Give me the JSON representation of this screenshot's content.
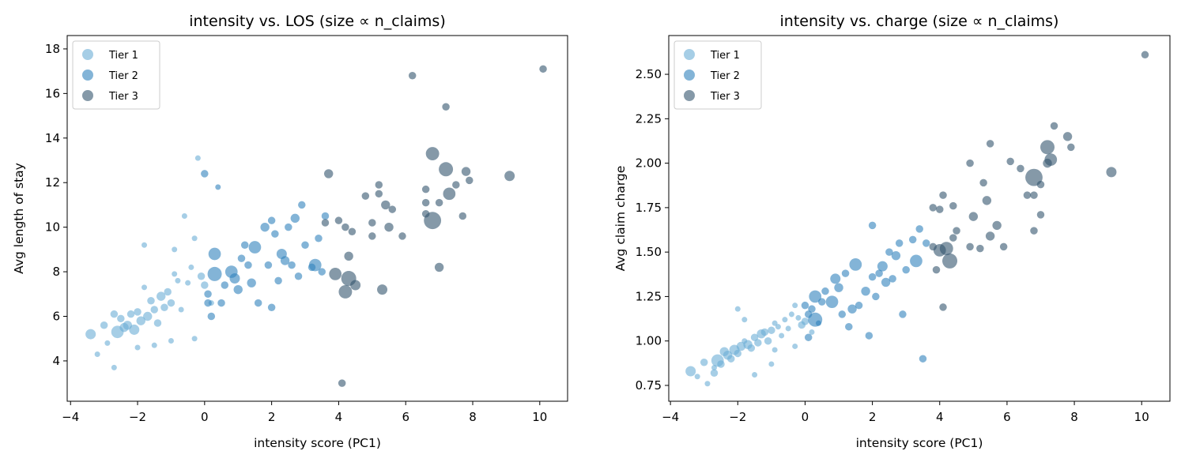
{
  "chart_data": [
    {
      "type": "scatter",
      "title": "intensity vs. LOS (size ∝ n_claims)",
      "xlabel": "intensity score (PC1)",
      "ylabel": "Avg length of stay",
      "xlim": [
        -4.1,
        10.83
      ],
      "ylim": [
        2.19,
        18.6
      ],
      "xticks": [
        {
          "value": -4,
          "label": "−4"
        },
        {
          "value": -2,
          "label": "−2"
        },
        0,
        2,
        4,
        6,
        8,
        10
      ],
      "yticks": [
        4,
        6,
        8,
        10,
        12,
        14,
        16,
        18
      ],
      "legend": "upper left",
      "series": [
        {
          "name": "Tier 1",
          "color": "#6baed6",
          "x": [
            -3.4,
            -3.2,
            -3.0,
            -2.9,
            -2.7,
            -2.6,
            -2.5,
            -2.3,
            -2.2,
            -2.1,
            -2.0,
            -1.9,
            -1.8,
            -1.7,
            -1.6,
            -1.5,
            -1.4,
            -1.3,
            -1.2,
            -1.1,
            -1.0,
            -0.9,
            -0.8,
            -0.7,
            -0.6,
            -0.5,
            -0.4,
            -0.3,
            -0.2,
            -0.1,
            0.0,
            0.2,
            -1.8,
            -2.4,
            -1.0,
            -0.3,
            -2.7,
            -1.5,
            -0.9,
            -2.0
          ],
          "values": [
            5.2,
            4.3,
            5.6,
            4.8,
            3.7,
            5.3,
            5.9,
            5.6,
            6.1,
            5.4,
            6.2,
            5.8,
            7.3,
            6.0,
            6.7,
            6.3,
            5.7,
            6.9,
            6.4,
            7.1,
            6.6,
            9.0,
            7.6,
            6.3,
            10.5,
            7.5,
            8.2,
            5.0,
            13.1,
            7.8,
            7.4,
            6.6,
            9.2,
            5.5,
            4.9,
            9.5,
            6.1,
            4.7,
            7.9,
            4.6
          ],
          "sizes": [
            40,
            10,
            20,
            10,
            10,
            60,
            20,
            30,
            20,
            40,
            20,
            30,
            10,
            30,
            20,
            20,
            20,
            30,
            20,
            20,
            20,
            10,
            10,
            10,
            10,
            10,
            10,
            10,
            10,
            20,
            20,
            10,
            10,
            30,
            10,
            10,
            20,
            10,
            10,
            10
          ]
        },
        {
          "name": "Tier 2",
          "color": "#3182bd",
          "x": [
            0.0,
            0.1,
            0.2,
            0.3,
            0.4,
            0.5,
            0.6,
            0.8,
            0.9,
            1.0,
            1.1,
            1.2,
            1.4,
            1.5,
            1.6,
            1.8,
            1.9,
            2.0,
            2.1,
            2.2,
            2.3,
            2.4,
            2.5,
            2.6,
            2.7,
            2.8,
            3.0,
            3.2,
            3.3,
            3.4,
            3.5,
            3.6,
            0.3,
            1.3,
            2.0,
            0.1,
            2.9
          ],
          "values": [
            12.4,
            7.0,
            6.0,
            8.8,
            11.8,
            6.6,
            7.4,
            8.0,
            7.7,
            7.2,
            8.6,
            9.2,
            7.5,
            9.1,
            6.6,
            10.0,
            8.3,
            10.3,
            9.7,
            7.6,
            8.8,
            8.5,
            10.0,
            8.3,
            10.4,
            7.8,
            9.2,
            8.2,
            8.3,
            9.5,
            8.0,
            10.5,
            7.9,
            8.3,
            6.4,
            6.6,
            11.0
          ],
          "sizes": [
            20,
            20,
            20,
            60,
            10,
            20,
            20,
            60,
            40,
            30,
            20,
            20,
            30,
            60,
            20,
            30,
            20,
            20,
            20,
            20,
            40,
            30,
            20,
            20,
            30,
            20,
            20,
            20,
            60,
            20,
            20,
            20,
            80,
            20,
            20,
            20,
            20
          ]
        },
        {
          "name": "Tier 3",
          "color": "#34556e",
          "x": [
            10.1,
            9.1,
            7.9,
            7.8,
            7.2,
            7.3,
            7.0,
            7.0,
            7.5,
            7.7,
            6.8,
            6.8,
            6.6,
            6.6,
            6.6,
            6.2,
            7.2,
            5.9,
            5.6,
            5.5,
            5.4,
            5.3,
            5.2,
            5.2,
            5.0,
            4.8,
            4.5,
            4.3,
            4.2,
            3.9,
            4.0,
            4.2,
            4.4,
            4.3,
            3.7,
            4.1,
            5.0,
            3.6
          ],
          "values": [
            17.1,
            12.3,
            12.1,
            12.5,
            12.6,
            11.5,
            11.1,
            8.2,
            11.9,
            10.5,
            13.3,
            10.3,
            11.7,
            11.1,
            10.6,
            16.8,
            15.4,
            9.6,
            10.8,
            10.0,
            11.0,
            7.2,
            11.9,
            11.5,
            10.2,
            11.4,
            7.4,
            7.7,
            7.1,
            7.9,
            10.3,
            10.0,
            9.8,
            8.7,
            12.4,
            3.0,
            9.6,
            10.2
          ],
          "sizes": [
            20,
            40,
            20,
            30,
            80,
            60,
            20,
            30,
            20,
            20,
            70,
            120,
            20,
            20,
            20,
            20,
            20,
            20,
            20,
            30,
            30,
            40,
            20,
            20,
            20,
            20,
            40,
            90,
            70,
            60,
            20,
            20,
            20,
            30,
            30,
            20,
            20,
            20
          ]
        }
      ]
    },
    {
      "type": "scatter",
      "title": "intensity vs. charge (size ∝ n_claims)",
      "xlabel": "intensity score (PC1)",
      "ylabel": "Avg claim charge",
      "xlim": [
        -4.05,
        10.84
      ],
      "ylim": [
        0.661,
        2.718
      ],
      "xticks": [
        {
          "value": -4,
          "label": "−4"
        },
        {
          "value": -2,
          "label": "−2"
        },
        0,
        2,
        4,
        6,
        8,
        10
      ],
      "yticks": [
        0.75,
        {
          "value": 1.0,
          "label": "1.00"
        },
        1.25,
        {
          "value": 1.5,
          "label": "1.50"
        },
        1.75,
        {
          "value": 2.0,
          "label": "2.00"
        },
        2.25,
        {
          "value": 2.5,
          "label": "2.50"
        }
      ],
      "legend": "upper left",
      "series": [
        {
          "name": "Tier 1",
          "color": "#6baed6",
          "x": [
            -3.4,
            -3.2,
            -3.0,
            -2.9,
            -2.7,
            -2.6,
            -2.5,
            -2.3,
            -2.2,
            -2.1,
            -2.0,
            -1.9,
            -1.8,
            -1.7,
            -1.6,
            -1.5,
            -1.4,
            -1.3,
            -1.2,
            -1.1,
            -1.0,
            -0.9,
            -0.8,
            -0.7,
            -0.6,
            -0.5,
            -0.4,
            -0.3,
            -0.2,
            -0.1,
            0.0,
            0.2,
            -1.8,
            -2.4,
            -1.0,
            -0.3,
            -2.7,
            -1.5,
            -0.9,
            -2.0
          ],
          "values": [
            0.83,
            0.8,
            0.88,
            0.76,
            0.85,
            0.89,
            0.87,
            0.92,
            0.9,
            0.95,
            0.93,
            0.97,
            1.0,
            0.98,
            0.96,
            1.02,
            0.99,
            1.04,
            1.05,
            1.0,
            1.06,
            1.1,
            1.08,
            1.03,
            1.12,
            1.07,
            1.15,
            0.97,
            1.13,
            1.09,
            1.11,
            1.05,
            1.12,
            0.94,
            0.87,
            1.2,
            0.82,
            0.81,
            0.95,
            1.18
          ],
          "sizes": [
            40,
            10,
            20,
            10,
            10,
            60,
            20,
            30,
            20,
            40,
            20,
            30,
            10,
            30,
            20,
            20,
            20,
            30,
            20,
            20,
            20,
            10,
            10,
            10,
            10,
            10,
            10,
            10,
            10,
            20,
            20,
            10,
            10,
            30,
            10,
            10,
            20,
            10,
            10,
            10
          ]
        },
        {
          "name": "Tier 2",
          "color": "#3182bd",
          "x": [
            0.0,
            0.1,
            0.2,
            0.3,
            0.4,
            0.5,
            0.6,
            0.8,
            0.9,
            1.0,
            1.1,
            1.2,
            1.4,
            1.5,
            1.6,
            1.8,
            1.9,
            2.0,
            2.1,
            2.2,
            2.3,
            2.4,
            2.5,
            2.6,
            2.7,
            2.8,
            3.0,
            3.2,
            3.3,
            3.4,
            3.5,
            3.6,
            0.3,
            1.3,
            2.0,
            0.1,
            2.9
          ],
          "values": [
            1.2,
            1.15,
            1.18,
            1.25,
            1.1,
            1.22,
            1.28,
            1.22,
            1.35,
            1.3,
            1.15,
            1.38,
            1.18,
            1.43,
            1.2,
            1.28,
            1.03,
            1.65,
            1.25,
            1.38,
            1.42,
            1.33,
            1.5,
            1.35,
            1.48,
            1.55,
            1.4,
            1.57,
            1.45,
            1.63,
            0.9,
            1.55,
            1.12,
            1.08,
            1.36,
            1.02,
            1.15
          ],
          "sizes": [
            20,
            20,
            20,
            60,
            10,
            20,
            20,
            60,
            40,
            30,
            20,
            20,
            30,
            60,
            20,
            30,
            20,
            20,
            20,
            20,
            40,
            30,
            20,
            20,
            30,
            20,
            20,
            20,
            60,
            20,
            20,
            20,
            80,
            20,
            20,
            20,
            20
          ]
        },
        {
          "name": "Tier 3",
          "color": "#34556e",
          "x": [
            10.1,
            9.1,
            7.9,
            7.8,
            7.2,
            7.3,
            7.0,
            6.8,
            6.8,
            7.4,
            7.2,
            6.8,
            6.4,
            6.1,
            5.9,
            5.7,
            5.5,
            5.4,
            5.5,
            5.2,
            5.0,
            4.9,
            4.2,
            4.3,
            4.1,
            4.0,
            4.4,
            3.8,
            3.9,
            4.5,
            4.0,
            4.4,
            4.1,
            4.9,
            5.3,
            6.6,
            7.0,
            3.8
          ],
          "values": [
            2.61,
            1.95,
            2.09,
            2.15,
            2.09,
            2.02,
            1.71,
            1.92,
            1.82,
            2.21,
            2.0,
            1.62,
            1.97,
            2.01,
            1.53,
            1.65,
            2.11,
            1.79,
            1.59,
            1.52,
            1.7,
            1.53,
            1.52,
            1.45,
            1.19,
            1.51,
            1.58,
            1.53,
            1.4,
            1.62,
            1.74,
            1.76,
            1.82,
            2.0,
            1.89,
            1.82,
            1.88,
            1.75
          ],
          "sizes": [
            20,
            40,
            20,
            30,
            80,
            60,
            20,
            120,
            20,
            20,
            30,
            20,
            20,
            20,
            20,
            30,
            20,
            30,
            30,
            20,
            30,
            20,
            70,
            90,
            20,
            60,
            20,
            20,
            20,
            20,
            20,
            20,
            20,
            20,
            20,
            20,
            20,
            20
          ]
        }
      ]
    }
  ]
}
